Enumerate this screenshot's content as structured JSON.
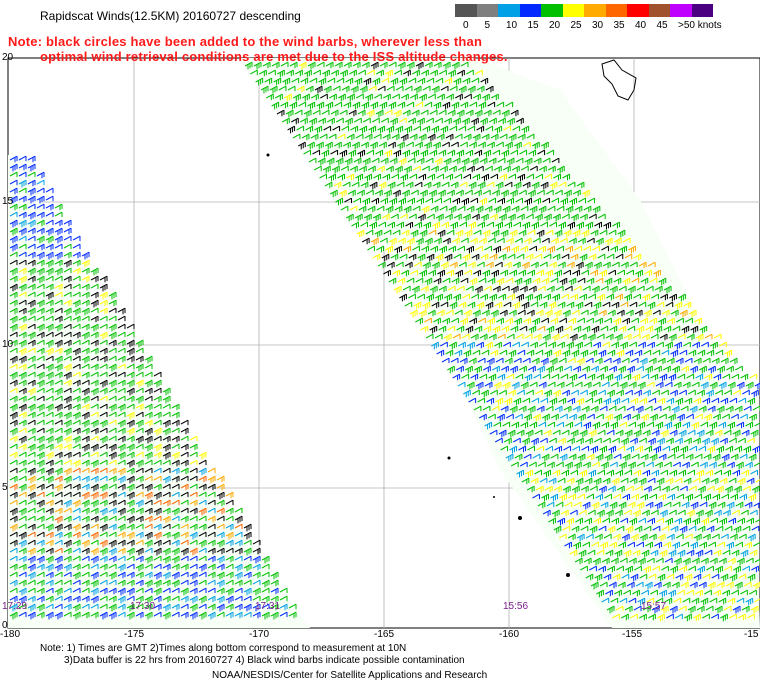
{
  "header": {
    "title": "Rapidscat Winds(12.5KM) 20160727 descending",
    "note_line1": "Note: black circles have been added to the wind barbs, wherever less than",
    "note_line2": "optimal wind retrieval conditions are met due to the ISS altitude changes."
  },
  "legend": {
    "ticks": [
      "0",
      "5",
      "10",
      "15",
      "20",
      "25",
      "30",
      "35",
      "40",
      "45",
      ">50 knots"
    ],
    "colors": [
      "#555555",
      "#7f7f7f",
      "#00a0e6",
      "#0028ff",
      "#00c000",
      "#ffff00",
      "#ffaa00",
      "#ff6600",
      "#ff0000",
      "#a0522d",
      "#c000ff",
      "#4b0082"
    ]
  },
  "axes": {
    "lat_labels": [
      "20",
      "15",
      "10",
      "5",
      "0"
    ],
    "lon_labels": [
      "-180",
      "-175",
      "-170",
      "-165",
      "-160",
      "-155",
      "-15"
    ]
  },
  "times": [
    "17:29",
    "17:30",
    "17:31",
    "15:56",
    "15:57"
  ],
  "footer": {
    "line1": "Note: 1) Times are GMT 2)Times along bottom correspond to measurement at 10N",
    "line2": "3)Data buffer is 22 hrs from 20160727 4) Black wind barbs indicate possible contamination",
    "line3": "NOAA/NESDIS/Center for Satellite Applications and Research"
  }
}
